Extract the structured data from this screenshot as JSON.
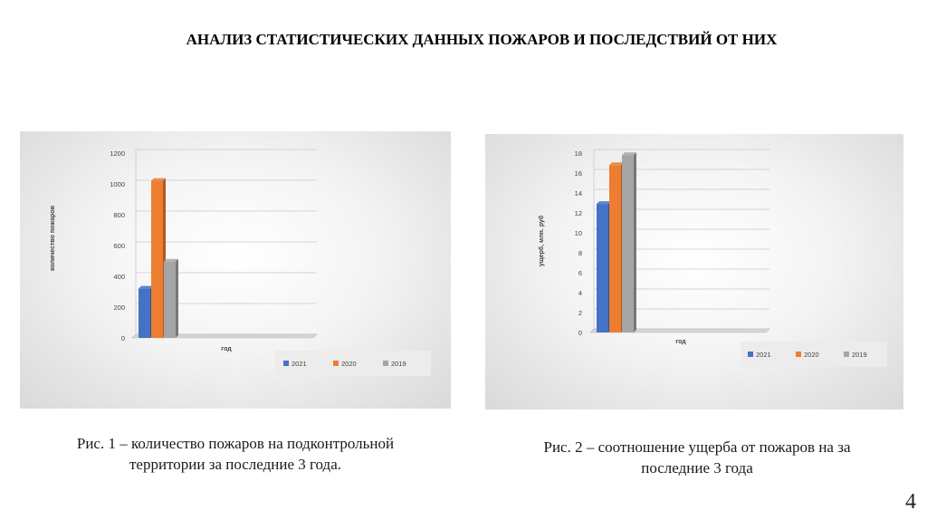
{
  "slide": {
    "title": "АНАЛИЗ СТАТИСТИЧЕСКИХ ДАННЫХ ПОЖАРОВ И ПОСЛЕДСТВИЙ ОТ НИХ",
    "caption1_line1": "Рис. 1 –  количество пожаров на подконтрольной",
    "caption1_line2": "территории  за последние 3 года.",
    "caption2_line1": "Рис. 2 – соотношение ущерба от пожаров на за",
    "caption2_line2": "последние 3 года",
    "page_number": "4"
  },
  "colors": {
    "2021": "#4472c4",
    "2020": "#ed7d31",
    "2019": "#a5a5a5"
  },
  "chart_data": [
    {
      "type": "bar",
      "categories": [
        ""
      ],
      "series": [
        {
          "name": "2021",
          "values": [
            320
          ]
        },
        {
          "name": "2020",
          "values": [
            1020
          ]
        },
        {
          "name": "2019",
          "values": [
            495
          ]
        }
      ],
      "title": "",
      "xlabel": "год",
      "ylabel": "количество пожаров",
      "ylim": [
        0,
        1200
      ],
      "yticks": [
        "0",
        "200",
        "400",
        "600",
        "800",
        "1000",
        "1200"
      ],
      "legend": "bottom-right",
      "grid": true
    },
    {
      "type": "bar",
      "categories": [
        ""
      ],
      "series": [
        {
          "name": "2021",
          "values": [
            12.9
          ]
        },
        {
          "name": "2020",
          "values": [
            16.8
          ]
        },
        {
          "name": "2019",
          "values": [
            17.8
          ]
        }
      ],
      "title": "",
      "xlabel": "год",
      "ylabel": "ущерб, млн. руб",
      "ylim": [
        0,
        18
      ],
      "yticks": [
        "0",
        "2",
        "4",
        "6",
        "8",
        "10",
        "12",
        "14",
        "16",
        "18"
      ],
      "legend": "bottom-right",
      "grid": true
    }
  ]
}
